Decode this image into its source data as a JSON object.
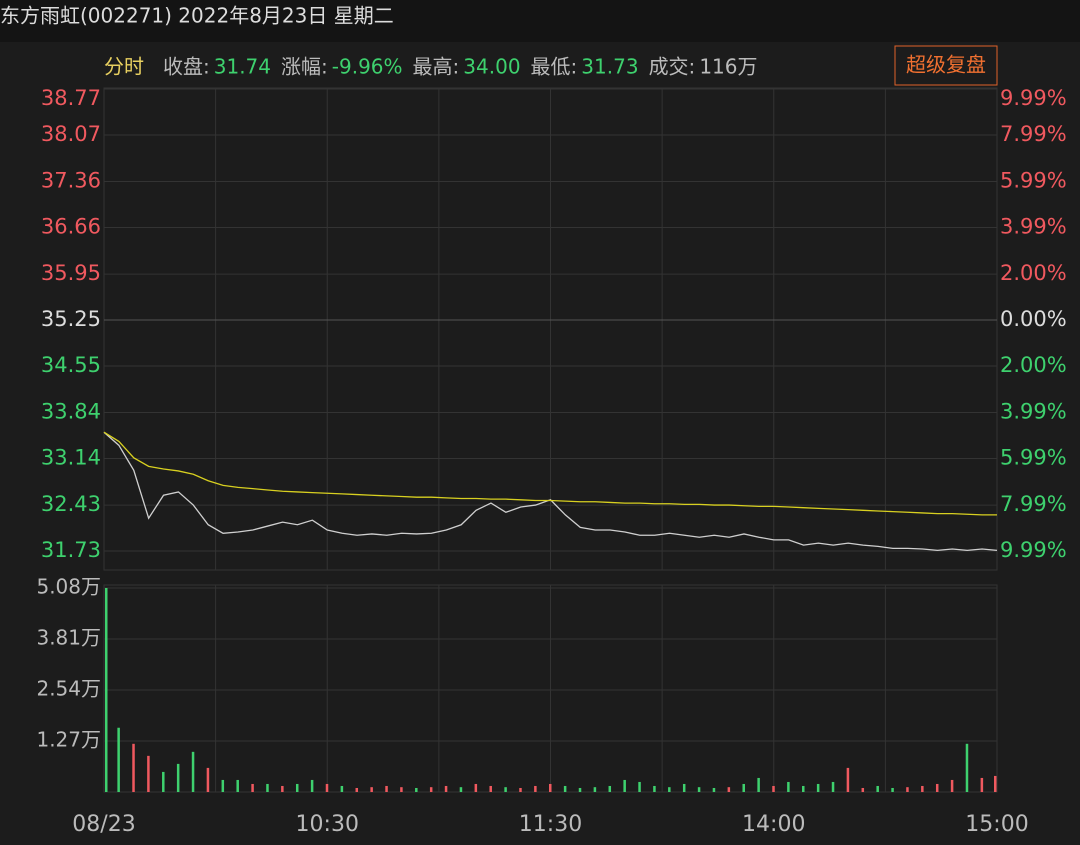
{
  "header": {
    "title": "东方雨虹(002271) 2022年8月23日 星期二",
    "tab": "分时",
    "button": "超级复盘",
    "stats": [
      {
        "label": "收盘:",
        "value": "31.74",
        "color": "#3ed16e"
      },
      {
        "label": "涨幅:",
        "value": "-9.96%",
        "color": "#3ed16e"
      },
      {
        "label": "最高:",
        "value": "34.00",
        "color": "#3ed16e"
      },
      {
        "label": "最低:",
        "value": "31.73",
        "color": "#3ed16e"
      },
      {
        "label": "成交:",
        "value": "116万",
        "color": "#bbbbbb"
      }
    ]
  },
  "chart_data": [
    {
      "type": "line",
      "xlim": [
        0,
        240
      ],
      "xticks": [
        {
          "value": 0,
          "label": "08/23"
        },
        {
          "value": 30,
          "label": null
        },
        {
          "value": 60,
          "label": "10:30"
        },
        {
          "value": 90,
          "label": null
        },
        {
          "value": 120,
          "label": "11:30"
        },
        {
          "value": 150,
          "label": null
        },
        {
          "value": 180,
          "label": "14:00"
        },
        {
          "value": 210,
          "label": null
        },
        {
          "value": 240,
          "label": "15:00"
        }
      ],
      "ylim": [
        31.73,
        38.77
      ],
      "yticks": [
        {
          "value": 38.77,
          "label": "38.77"
        },
        {
          "value": 38.07,
          "label": "38.07"
        },
        {
          "value": 37.36,
          "label": "37.36"
        },
        {
          "value": 36.66,
          "label": "36.66"
        },
        {
          "value": 35.95,
          "label": "35.95"
        },
        {
          "value": 35.25,
          "label": "35.25"
        },
        {
          "value": 34.55,
          "label": "34.55"
        },
        {
          "value": 33.84,
          "label": "33.84"
        },
        {
          "value": 33.14,
          "label": "33.14"
        },
        {
          "value": 32.43,
          "label": "32.43"
        },
        {
          "value": 31.73,
          "label": "31.73"
        }
      ],
      "y2lim": [
        -9.99,
        9.99
      ],
      "y2ticks": [
        {
          "value": 9.99,
          "label": "9.99%"
        },
        {
          "value": 7.99,
          "label": "7.99%"
        },
        {
          "value": 5.99,
          "label": "5.99%"
        },
        {
          "value": 3.99,
          "label": "3.99%"
        },
        {
          "value": 2.0,
          "label": "2.00%"
        },
        {
          "value": 0,
          "label": "0.00%"
        },
        {
          "value": -2.0,
          "label": "2.00%"
        },
        {
          "value": -3.99,
          "label": "3.99%"
        },
        {
          "value": -5.99,
          "label": "5.99%"
        },
        {
          "value": -7.99,
          "label": "7.99%"
        },
        {
          "value": -9.99,
          "label": "9.99%"
        }
      ],
      "up_color": "#f0595f",
      "down_color": "#3ed16e",
      "flat_color": "#dddddd",
      "x": [
        0,
        4,
        8,
        12,
        16,
        20,
        24,
        28,
        32,
        36,
        40,
        44,
        48,
        52,
        56,
        60,
        64,
        68,
        72,
        76,
        80,
        84,
        88,
        92,
        96,
        100,
        104,
        108,
        112,
        116,
        120,
        124,
        128,
        132,
        136,
        140,
        144,
        148,
        152,
        156,
        160,
        164,
        168,
        172,
        176,
        180,
        184,
        188,
        192,
        196,
        200,
        204,
        208,
        212,
        216,
        220,
        224,
        228,
        232,
        236,
        240
      ],
      "series": [
        {
          "color": "#cfcfcf",
          "values": [
            33.54,
            33.34,
            32.96,
            32.23,
            32.58,
            32.63,
            32.43,
            32.13,
            32.0,
            32.02,
            32.05,
            32.11,
            32.17,
            32.13,
            32.2,
            32.05,
            32.0,
            31.97,
            31.99,
            31.97,
            32.0,
            31.99,
            32.0,
            32.05,
            32.13,
            32.35,
            32.46,
            32.32,
            32.4,
            32.43,
            32.51,
            32.28,
            32.09,
            32.05,
            32.05,
            32.02,
            31.97,
            31.97,
            32.0,
            31.97,
            31.94,
            31.97,
            31.94,
            31.99,
            31.94,
            31.9,
            31.9,
            31.82,
            31.85,
            31.82,
            31.85,
            31.82,
            31.8,
            31.77,
            31.77,
            31.76,
            31.74,
            31.76,
            31.74,
            31.76,
            31.74
          ]
        },
        {
          "color": "#d8d020",
          "values": [
            33.54,
            33.4,
            33.15,
            33.02,
            32.98,
            32.95,
            32.9,
            32.8,
            32.73,
            32.7,
            32.68,
            32.66,
            32.64,
            32.63,
            32.62,
            32.61,
            32.6,
            32.59,
            32.58,
            32.57,
            32.56,
            32.55,
            32.55,
            32.54,
            32.53,
            32.53,
            32.52,
            32.52,
            32.51,
            32.5,
            32.5,
            32.49,
            32.48,
            32.48,
            32.47,
            32.46,
            32.46,
            32.45,
            32.45,
            32.44,
            32.44,
            32.43,
            32.43,
            32.42,
            32.41,
            32.41,
            32.4,
            32.39,
            32.38,
            32.37,
            32.36,
            32.35,
            32.34,
            32.33,
            32.32,
            32.31,
            32.3,
            32.3,
            32.29,
            32.28,
            32.28
          ]
        }
      ]
    },
    {
      "type": "bar",
      "xlim": [
        0,
        240
      ],
      "ylim": [
        0,
        5.08
      ],
      "yticks": [
        {
          "value": 5.08,
          "label": "5.08万"
        },
        {
          "value": 3.81,
          "label": "3.81万"
        },
        {
          "value": 2.54,
          "label": "2.54万"
        },
        {
          "value": 1.27,
          "label": "1.27万"
        }
      ],
      "x": [
        0,
        4,
        8,
        12,
        16,
        20,
        24,
        28,
        32,
        36,
        40,
        44,
        48,
        52,
        56,
        60,
        64,
        68,
        72,
        76,
        80,
        84,
        88,
        92,
        96,
        100,
        104,
        108,
        112,
        116,
        120,
        124,
        128,
        132,
        136,
        140,
        144,
        148,
        152,
        156,
        160,
        164,
        168,
        172,
        176,
        180,
        184,
        188,
        192,
        196,
        200,
        204,
        208,
        212,
        216,
        220,
        224,
        228,
        232,
        236,
        240
      ],
      "values": [
        5.08,
        1.6,
        1.2,
        0.9,
        0.5,
        0.7,
        1.0,
        0.6,
        0.3,
        0.3,
        0.2,
        0.2,
        0.15,
        0.2,
        0.3,
        0.2,
        0.15,
        0.1,
        0.12,
        0.15,
        0.12,
        0.1,
        0.12,
        0.15,
        0.12,
        0.2,
        0.15,
        0.12,
        0.1,
        0.15,
        0.2,
        0.15,
        0.1,
        0.12,
        0.15,
        0.3,
        0.25,
        0.15,
        0.12,
        0.2,
        0.12,
        0.1,
        0.12,
        0.2,
        0.35,
        0.15,
        0.25,
        0.15,
        0.2,
        0.25,
        0.6,
        0.1,
        0.15,
        0.1,
        0.12,
        0.15,
        0.2,
        0.3,
        1.2,
        0.35,
        0.4
      ],
      "colors": [
        "#3ed16e",
        "#3ed16e",
        "#f0595f",
        "#f0595f",
        "#3ed16e",
        "#3ed16e",
        "#3ed16e",
        "#f0595f",
        "#3ed16e",
        "#3ed16e",
        "#f0595f",
        "#3ed16e",
        "#f0595f",
        "#3ed16e",
        "#3ed16e",
        "#f0595f",
        "#3ed16e",
        "#f0595f",
        "#f0595f",
        "#f0595f",
        "#f0595f",
        "#3ed16e",
        "#f0595f",
        "#f0595f",
        "#3ed16e",
        "#f0595f",
        "#f0595f",
        "#3ed16e",
        "#f0595f",
        "#f0595f",
        "#f0595f",
        "#3ed16e",
        "#3ed16e",
        "#3ed16e",
        "#3ed16e",
        "#3ed16e",
        "#3ed16e",
        "#3ed16e",
        "#3ed16e",
        "#3ed16e",
        "#3ed16e",
        "#3ed16e",
        "#f0595f",
        "#3ed16e",
        "#3ed16e",
        "#f0595f",
        "#3ed16e",
        "#3ed16e",
        "#3ed16e",
        "#3ed16e",
        "#f0595f",
        "#f0595f",
        "#3ed16e",
        "#3ed16e",
        "#f0595f",
        "#f0595f",
        "#f0595f",
        "#f0595f",
        "#3ed16e",
        "#f0595f",
        "#f0595f"
      ]
    }
  ]
}
